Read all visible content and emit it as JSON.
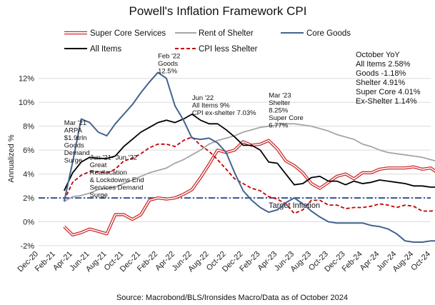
{
  "chart_data": {
    "type": "line",
    "title": "Powell's Inflation Framework CPI",
    "xlabel": "",
    "ylabel": "Annualized %",
    "ylim": [
      -2,
      13
    ],
    "yticks": [
      -2,
      0,
      2,
      4,
      6,
      8,
      10,
      12
    ],
    "ytick_labels": [
      "-2%",
      "0%",
      "2%",
      "4%",
      "6%",
      "8%",
      "10%",
      "12%"
    ],
    "x_start": "2020-12",
    "x_end": "2024-10",
    "xtick_labels": [
      "Dec-20",
      "Feb-21",
      "Apr-21",
      "Jun-21",
      "Aug-21",
      "Oct-21",
      "Dec-21",
      "Feb-22",
      "Apr-22",
      "Jun-22",
      "Aug-22",
      "Oct-22",
      "Dec-22",
      "Feb-23",
      "Apr-23",
      "Jun-23",
      "Aug-23",
      "Oct-23",
      "Dec-23",
      "Feb-24",
      "Apr-24",
      "Jun-24",
      "Aug-24",
      "Oct-24"
    ],
    "grid": "horizontal",
    "legend_position": "top",
    "reference_line": {
      "value": 2,
      "label": "Target Inflation",
      "color": "#2f5597"
    },
    "series": [
      {
        "name": "Super Core Services",
        "color": "#cc2b2b",
        "style": "outlined",
        "start": "2021-03",
        "values": [
          -0.4,
          -1.1,
          -0.9,
          -0.6,
          -0.8,
          -1.0,
          0.6,
          0.6,
          0.2,
          0.6,
          1.8,
          2.0,
          1.9,
          2.0,
          2.3,
          2.7,
          3.7,
          4.8,
          6.0,
          5.8,
          6.0,
          6.7,
          6.4,
          6.5,
          6.8,
          6.1,
          5.1,
          4.7,
          4.1,
          3.2,
          2.8,
          3.3,
          3.8,
          4.0,
          3.6,
          4.1,
          4.1,
          4.4,
          4.5,
          4.5,
          4.5,
          4.6,
          4.4,
          4.5,
          4.0,
          4.0
        ]
      },
      {
        "name": "Rent of Shelter",
        "color": "#a6a6a6",
        "style": "solid",
        "start": "2021-03",
        "values": [
          1.7,
          2.1,
          2.2,
          2.4,
          2.7,
          2.8,
          2.9,
          3.2,
          3.5,
          3.8,
          4.1,
          4.3,
          4.5,
          4.9,
          5.2,
          5.6,
          6.0,
          6.5,
          6.8,
          7.0,
          7.2,
          7.5,
          7.7,
          7.9,
          8.0,
          8.1,
          8.2,
          8.2,
          8.1,
          8.0,
          7.8,
          7.6,
          7.3,
          7.1,
          6.9,
          6.5,
          6.3,
          6.0,
          5.8,
          5.7,
          5.6,
          5.5,
          5.4,
          5.2,
          5.0,
          5.2,
          4.9,
          4.9
        ]
      },
      {
        "name": "Core Goods",
        "color": "#44638f",
        "style": "solid",
        "start": "2021-03",
        "values": [
          1.7,
          5.0,
          8.6,
          8.3,
          7.5,
          7.2,
          8.2,
          9.0,
          9.8,
          10.8,
          11.7,
          12.5,
          12.0,
          9.7,
          8.5,
          7.0,
          6.9,
          7.0,
          6.6,
          5.8,
          4.1,
          2.6,
          1.8,
          1.2,
          0.8,
          1.0,
          1.6,
          2.0,
          1.5,
          0.9,
          0.4,
          0.0,
          -0.1,
          -0.1,
          -0.1,
          -0.1,
          -0.3,
          -0.4,
          -0.6,
          -1.0,
          -1.6,
          -1.7,
          -1.7,
          -1.6,
          -1.6,
          -1.3,
          -1.2
        ]
      },
      {
        "name": "All Items",
        "color": "#000000",
        "style": "solid",
        "start": "2021-03",
        "values": [
          2.6,
          4.1,
          5.0,
          5.4,
          5.3,
          5.3,
          5.5,
          6.3,
          6.9,
          7.5,
          7.9,
          8.3,
          8.5,
          8.3,
          8.6,
          9.0,
          8.5,
          8.2,
          8.2,
          7.7,
          7.1,
          6.4,
          6.4,
          6.0,
          5.0,
          4.9,
          4.0,
          3.1,
          3.2,
          3.7,
          3.8,
          3.4,
          3.4,
          3.1,
          3.4,
          3.2,
          3.3,
          3.5,
          3.4,
          3.3,
          3.2,
          3.0,
          3.0,
          2.9,
          2.9,
          2.6,
          2.4,
          2.6
        ]
      },
      {
        "name": "CPI less Shelter",
        "color": "#c00000",
        "style": "dashed",
        "start": "2021-03",
        "values": [
          1.8,
          3.3,
          3.9,
          4.2,
          4.2,
          4.1,
          4.4,
          5.1,
          5.3,
          5.7,
          6.2,
          6.5,
          6.5,
          6.3,
          6.8,
          7.1,
          6.4,
          5.9,
          5.2,
          4.4,
          3.6,
          3.2,
          2.8,
          2.6,
          2.1,
          1.9,
          1.5,
          0.7,
          1.0,
          1.8,
          1.8,
          1.4,
          1.4,
          1.1,
          1.2,
          1.2,
          1.3,
          1.5,
          1.4,
          1.2,
          1.4,
          1.3,
          0.9,
          0.9,
          1.0,
          1.1,
          1.1
        ]
      }
    ],
    "annotations": [
      {
        "at": [
          "2021-03",
          8.1
        ],
        "lines": [
          "Mar '21",
          "ARPA",
          "$1.9trln",
          "Goods",
          "Demand",
          "Surge"
        ]
      },
      {
        "at": [
          "2022-02",
          13.7
        ],
        "lines": [
          "Feb '22",
          "Goods",
          "12.5%"
        ]
      },
      {
        "at": [
          "2022-06",
          10.2
        ],
        "lines": [
          "Jun '22",
          "All Items 9%",
          "CPI ex-shelter 7.03%"
        ]
      },
      {
        "at": [
          "2021-06",
          5.2
        ],
        "lines": [
          "Jun '21- Jun '22",
          "Great",
          "Reallocation",
          "& Lockdowns End",
          "Services Demand",
          "Surge"
        ]
      },
      {
        "at": [
          "2023-03",
          10.4
        ],
        "lines": [
          "Mar '23",
          "Shelter",
          "8.25%",
          "Super Core",
          "6.77%"
        ]
      }
    ],
    "summary_box": [
      "October YoY",
      "All Items 2.58%",
      "Goods -1.18%",
      "Shelter 4.91%",
      "Super Core 4.01%",
      "Ex-Shelter 1.14%"
    ],
    "source": "Source: Macrobond/BLS/Ironsides Macro/Data as of October 2024"
  }
}
